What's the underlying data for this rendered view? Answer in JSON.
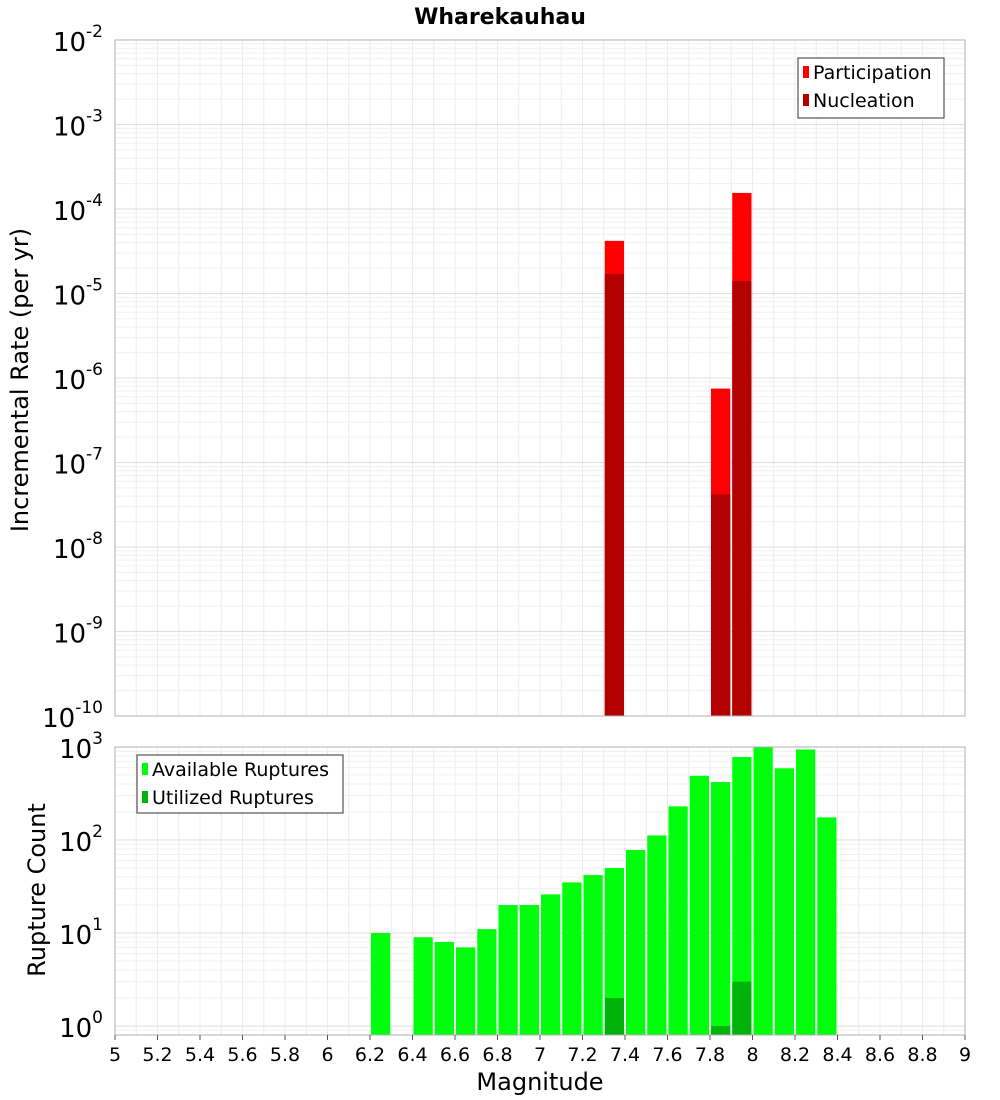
{
  "chart_data": [
    {
      "type": "bar",
      "title": "Wharekauhau",
      "xlabel": "",
      "ylabel": "Incremental Rate (per yr)",
      "y_scale": "log",
      "xlim": [
        5,
        9
      ],
      "ylim": [
        1e-10,
        0.01
      ],
      "ytick_mantissa": "10",
      "yticks": [
        {
          "exp": "-10",
          "value": 1e-10
        },
        {
          "exp": "-9",
          "value": 1e-09
        },
        {
          "exp": "-8",
          "value": 1e-08
        },
        {
          "exp": "-7",
          "value": 1e-07
        },
        {
          "exp": "-6",
          "value": 1e-06
        },
        {
          "exp": "-5",
          "value": 1e-05
        },
        {
          "exp": "-4",
          "value": 0.0001
        },
        {
          "exp": "-3",
          "value": 0.001
        },
        {
          "exp": "-2",
          "value": 0.01
        }
      ],
      "grid": true,
      "legend": "top-right",
      "series": [
        {
          "name": "Participation",
          "color": "#ff0000",
          "x": [
            7.35,
            7.85,
            7.95
          ],
          "values": [
            4.2e-05,
            7.5e-07,
            0.000155
          ]
        },
        {
          "name": "Nucleation",
          "color": "#b30000",
          "x": [
            7.35,
            7.85,
            7.95
          ],
          "values": [
            1.7e-05,
            4.2e-08,
            1.4e-05
          ]
        }
      ]
    },
    {
      "type": "bar",
      "title": "",
      "xlabel": "Magnitude",
      "ylabel": "Rupture Count",
      "y_scale": "log",
      "xlim": [
        5,
        9
      ],
      "ylim": [
        0.8,
        1000
      ],
      "ytick_mantissa": "10",
      "yticks": [
        {
          "exp": "0",
          "value": 1
        },
        {
          "exp": "1",
          "value": 10
        },
        {
          "exp": "2",
          "value": 100
        },
        {
          "exp": "3",
          "value": 1000
        }
      ],
      "xticks": [
        "5",
        "5.2",
        "5.4",
        "5.6",
        "5.8",
        "6",
        "6.2",
        "6.4",
        "6.6",
        "6.8",
        "7",
        "7.2",
        "7.4",
        "7.6",
        "7.8",
        "8",
        "8.2",
        "8.4",
        "8.6",
        "8.8",
        "9"
      ],
      "grid": true,
      "legend": "top-left",
      "series": [
        {
          "name": "Available Ruptures",
          "color": "#00ff0d",
          "x": [
            6.25,
            6.45,
            6.55,
            6.65,
            6.75,
            6.85,
            6.95,
            7.05,
            7.15,
            7.25,
            7.35,
            7.45,
            7.55,
            7.65,
            7.75,
            7.85,
            7.95,
            8.05,
            8.15,
            8.25,
            8.35
          ],
          "values": [
            10,
            9,
            8,
            7,
            11,
            20,
            20,
            26,
            35,
            42,
            50,
            78,
            112,
            230,
            490,
            420,
            780,
            1000,
            590,
            940,
            175
          ]
        },
        {
          "name": "Utilized Ruptures",
          "color": "#00b30a",
          "x": [
            7.35,
            7.85,
            7.95
          ],
          "values": [
            2,
            1,
            3
          ]
        }
      ]
    }
  ]
}
